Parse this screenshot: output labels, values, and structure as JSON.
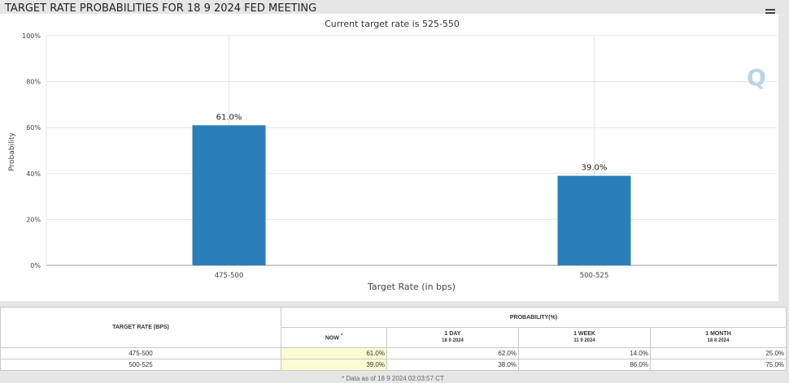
{
  "page": {
    "title": "TARGET RATE PROBABILITIES FOR 18 9 2024 FED MEETING",
    "logo": "Q"
  },
  "chart_data": {
    "type": "bar",
    "subtitle": "Current target rate is 525-550",
    "categories": [
      "475-500",
      "500-525"
    ],
    "values": [
      61.0,
      39.0
    ],
    "value_labels": [
      "61.0%",
      "39.0%"
    ],
    "xlabel": "Target Rate (in bps)",
    "ylabel": "Probability",
    "ylim": [
      0,
      100
    ],
    "yticks": [
      0,
      20,
      40,
      60,
      80,
      100
    ],
    "ytick_labels": [
      "0%",
      "20%",
      "40%",
      "60%",
      "80%",
      "100%"
    ],
    "bar_color": "#2a7fba",
    "grid": true
  },
  "table": {
    "target_rate_header": "TARGET RATE (BPS)",
    "probability_header": "PROBABILITY(%)",
    "columns": [
      {
        "label": "NOW",
        "sup": "*",
        "date": ""
      },
      {
        "label": "1 DAY",
        "date": "18 9 2024"
      },
      {
        "label": "1 WEEK",
        "date": "11 9 2024"
      },
      {
        "label": "1 MONTH",
        "date": "18 8 2024"
      }
    ],
    "rows": [
      {
        "rate": "475-500",
        "now": "61.0%",
        "day": "62.0%",
        "week": "14.0%",
        "month": "25.0%"
      },
      {
        "rate": "500-525",
        "now": "39.0%",
        "day": "38.0%",
        "week": "86.0%",
        "month": "75.0%"
      }
    ],
    "note": "* Data as of 18 9 2024 02:03:57 CT"
  }
}
